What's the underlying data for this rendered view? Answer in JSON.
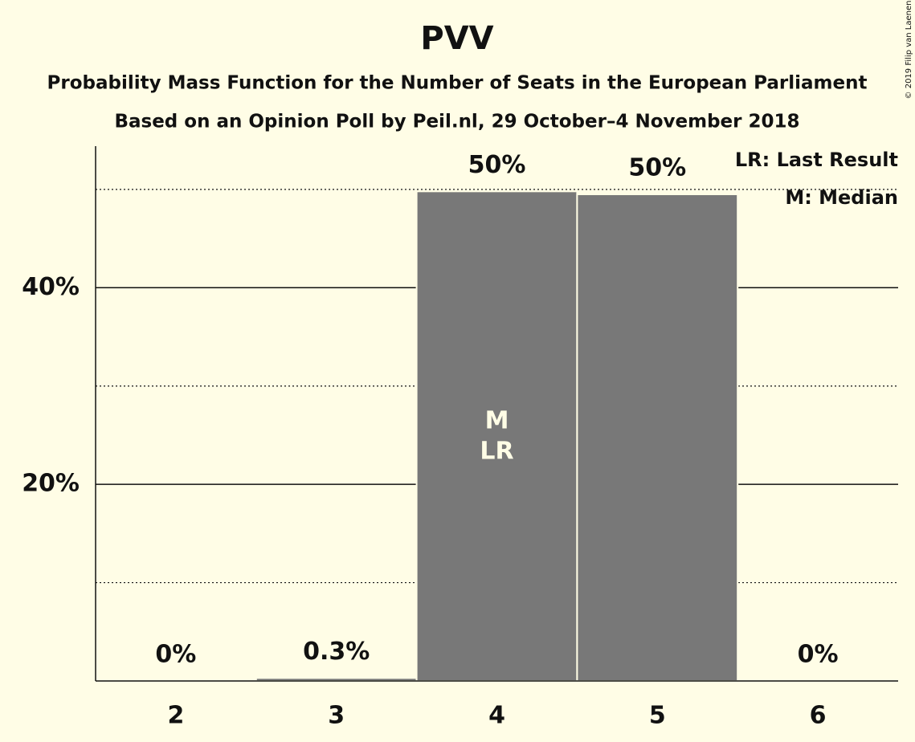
{
  "chart_data": {
    "type": "bar",
    "title": "PVV",
    "subtitle": "Probability Mass Function for the Number of Seats in the European Parliament",
    "subtitle2": "Based on an Opinion Poll by Peil.nl, 29 October–4 November 2018",
    "categories": [
      "2",
      "3",
      "4",
      "5",
      "6"
    ],
    "values": [
      0,
      0.3,
      49.8,
      49.5,
      0
    ],
    "value_labels": [
      "0%",
      "0.3%",
      "50%",
      "50%",
      "0%"
    ],
    "color": "#787878",
    "ylim": [
      0,
      54.4
    ],
    "yticks": [
      {
        "value": 20,
        "label": "20%"
      },
      {
        "value": 40,
        "label": "40%"
      }
    ],
    "minor_gridlines": [
      10,
      30,
      50
    ],
    "annotations": [
      {
        "text": "M",
        "category": "4"
      },
      {
        "text": "LR",
        "category": "4"
      }
    ],
    "legend": [
      "LR: Last Result",
      "M: Median"
    ],
    "copyright": "© 2019 Filip van Laenen"
  }
}
